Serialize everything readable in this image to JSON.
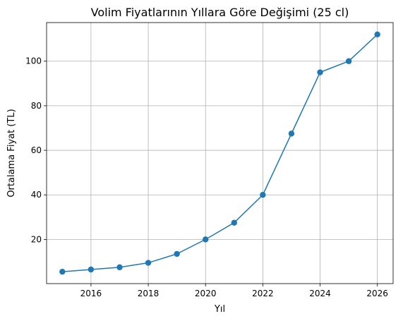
{
  "chart_data": {
    "type": "line",
    "title": "Volim Fiyatlarının Yıllara Göre Değişimi (25 cl)",
    "xlabel": "Yıl",
    "ylabel": "Ortalama Fiyat (TL)",
    "x": [
      2015,
      2016,
      2017,
      2018,
      2019,
      2020,
      2021,
      2022,
      2023,
      2024,
      2025,
      2026
    ],
    "series": [
      {
        "values": [
          5.5,
          6.5,
          7.5,
          9.5,
          13.5,
          20,
          27.5,
          40,
          67.5,
          95,
          100,
          112
        ],
        "color": "#1f77b4"
      }
    ],
    "xlim": [
      2014.45,
      2026.55
    ],
    "ylim": [
      0.17,
      117.33
    ],
    "xticks": [
      2016,
      2018,
      2020,
      2022,
      2024,
      2026
    ],
    "yticks": [
      20,
      40,
      60,
      80,
      100
    ],
    "grid": true
  }
}
